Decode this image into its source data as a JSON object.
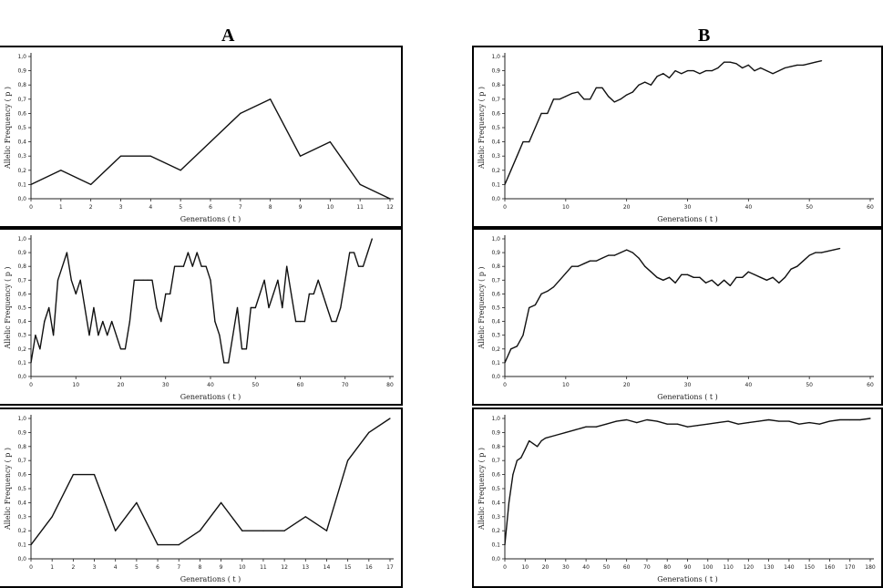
{
  "column_titles": {
    "a": "A",
    "b": "B"
  },
  "chart_data": [
    {
      "id": "a1",
      "type": "line",
      "title": "",
      "xlabel": "Generations ( t )",
      "ylabel": "Allelic Frequency ( p )",
      "xlim": [
        0,
        12
      ],
      "ylim": [
        0,
        1
      ],
      "xticks": [
        0,
        1,
        2,
        3,
        4,
        5,
        6,
        7,
        8,
        9,
        10,
        11,
        12
      ],
      "xtick_labels": [
        "0",
        "1",
        "2",
        "3",
        "4",
        "5",
        "6",
        "7",
        "8",
        "9",
        "10",
        "11",
        "12"
      ],
      "yticks": [
        0,
        0.1,
        0.2,
        0.3,
        0.4,
        0.5,
        0.6,
        0.7,
        0.8,
        0.9,
        1
      ],
      "ytick_labels": [
        "0,0",
        "0,1",
        "0,2",
        "0,3",
        "0,4",
        "0,5",
        "0,6",
        "0,7",
        "0,8",
        "0,9",
        "1,0"
      ],
      "x": [
        0,
        1,
        2,
        3,
        4,
        5,
        6,
        7,
        8,
        9,
        10,
        11,
        12
      ],
      "y": [
        0.1,
        0.2,
        0.1,
        0.3,
        0.3,
        0.2,
        0.4,
        0.6,
        0.7,
        0.3,
        0.4,
        0.1,
        0.0
      ]
    },
    {
      "id": "a2",
      "type": "line",
      "title": "",
      "xlabel": "Generations ( t )",
      "ylabel": "Allelic Frequency ( p )",
      "xlim": [
        0,
        80
      ],
      "ylim": [
        0,
        1
      ],
      "xticks": [
        0,
        10,
        20,
        30,
        40,
        50,
        60,
        70,
        80
      ],
      "xtick_labels": [
        "0",
        "10",
        "20",
        "30",
        "40",
        "50",
        "60",
        "70",
        "80"
      ],
      "yticks": [
        0,
        0.1,
        0.2,
        0.3,
        0.4,
        0.5,
        0.6,
        0.7,
        0.8,
        0.9,
        1
      ],
      "ytick_labels": [
        "0,0",
        "0,1",
        "0,2",
        "0,3",
        "0,4",
        "0,5",
        "0,6",
        "0,7",
        "0,8",
        "0,9",
        "1,0"
      ],
      "x": [
        0,
        1,
        2,
        3,
        4,
        5,
        6,
        7,
        8,
        9,
        10,
        11,
        12,
        13,
        14,
        15,
        16,
        17,
        18,
        19,
        20,
        21,
        22,
        23,
        24,
        25,
        26,
        27,
        28,
        29,
        30,
        31,
        32,
        33,
        34,
        35,
        36,
        37,
        38,
        39,
        40,
        41,
        42,
        43,
        44,
        45,
        46,
        47,
        48,
        49,
        50,
        51,
        52,
        53,
        54,
        55,
        56,
        57,
        58,
        59,
        60,
        61,
        62,
        63,
        64,
        65,
        66,
        67,
        68,
        69,
        70,
        71,
        72,
        73,
        74,
        75,
        76
      ],
      "y": [
        0.1,
        0.3,
        0.2,
        0.4,
        0.5,
        0.3,
        0.7,
        0.8,
        0.9,
        0.7,
        0.6,
        0.7,
        0.5,
        0.3,
        0.5,
        0.3,
        0.4,
        0.3,
        0.4,
        0.3,
        0.2,
        0.2,
        0.4,
        0.7,
        0.7,
        0.7,
        0.7,
        0.7,
        0.5,
        0.4,
        0.6,
        0.6,
        0.8,
        0.8,
        0.8,
        0.9,
        0.8,
        0.9,
        0.8,
        0.8,
        0.7,
        0.4,
        0.3,
        0.1,
        0.1,
        0.3,
        0.5,
        0.2,
        0.2,
        0.5,
        0.5,
        0.6,
        0.7,
        0.5,
        0.6,
        0.7,
        0.5,
        0.8,
        0.6,
        0.4,
        0.4,
        0.4,
        0.6,
        0.6,
        0.7,
        0.6,
        0.5,
        0.4,
        0.4,
        0.5,
        0.7,
        0.9,
        0.9,
        0.8,
        0.8,
        0.9,
        1.0
      ]
    },
    {
      "id": "a3",
      "type": "line",
      "title": "",
      "xlabel": "Generations ( t )",
      "ylabel": "Allelic Frequency ( p )",
      "xlim": [
        0,
        17
      ],
      "ylim": [
        0,
        1
      ],
      "xticks": [
        0,
        1,
        2,
        3,
        4,
        5,
        6,
        7,
        8,
        9,
        10,
        11,
        12,
        13,
        14,
        15,
        16,
        17
      ],
      "xtick_labels": [
        "0",
        "1",
        "2",
        "3",
        "4",
        "5",
        "6",
        "7",
        "8",
        "9",
        "10",
        "11",
        "12",
        "13",
        "14",
        "15",
        "16",
        "17"
      ],
      "yticks": [
        0,
        0.1,
        0.2,
        0.3,
        0.4,
        0.5,
        0.6,
        0.7,
        0.8,
        0.9,
        1
      ],
      "ytick_labels": [
        "0,0",
        "0,1",
        "0,2",
        "0,3",
        "0,4",
        "0,5",
        "0,6",
        "0,7",
        "0,8",
        "0,9",
        "1,0"
      ],
      "x": [
        0,
        1,
        2,
        3,
        4,
        5,
        6,
        7,
        8,
        9,
        10,
        11,
        12,
        13,
        14,
        15,
        16,
        17
      ],
      "y": [
        0.1,
        0.3,
        0.6,
        0.6,
        0.2,
        0.4,
        0.1,
        0.1,
        0.2,
        0.4,
        0.2,
        0.2,
        0.2,
        0.3,
        0.2,
        0.7,
        0.9,
        1.0
      ]
    },
    {
      "id": "b1",
      "type": "line",
      "title": "",
      "xlabel": "Generations ( t )",
      "ylabel": "Allelic Frequency ( p )",
      "xlim": [
        0,
        60
      ],
      "ylim": [
        0,
        1
      ],
      "xticks": [
        0,
        10,
        20,
        30,
        40,
        50,
        60
      ],
      "xtick_labels": [
        "0",
        "10",
        "20",
        "30",
        "40",
        "50",
        "60"
      ],
      "yticks": [
        0,
        0.1,
        0.2,
        0.3,
        0.4,
        0.5,
        0.6,
        0.7,
        0.8,
        0.9,
        1
      ],
      "ytick_labels": [
        "0,0",
        "0,1",
        "0,2",
        "0,3",
        "0,4",
        "0,5",
        "0,6",
        "0,7",
        "0,8",
        "0,9",
        "1,0"
      ],
      "x": [
        0,
        1,
        2,
        3,
        4,
        5,
        6,
        7,
        8,
        9,
        10,
        11,
        12,
        13,
        14,
        15,
        16,
        17,
        18,
        19,
        20,
        21,
        22,
        23,
        24,
        25,
        26,
        27,
        28,
        29,
        30,
        31,
        32,
        33,
        34,
        35,
        36,
        37,
        38,
        39,
        40,
        41,
        42,
        43,
        44,
        45,
        46,
        47,
        48,
        49,
        50,
        51,
        52
      ],
      "y": [
        0.1,
        0.2,
        0.3,
        0.4,
        0.4,
        0.5,
        0.6,
        0.6,
        0.7,
        0.7,
        0.72,
        0.74,
        0.75,
        0.7,
        0.7,
        0.78,
        0.78,
        0.72,
        0.68,
        0.7,
        0.73,
        0.75,
        0.8,
        0.82,
        0.8,
        0.86,
        0.88,
        0.85,
        0.9,
        0.88,
        0.9,
        0.9,
        0.88,
        0.9,
        0.9,
        0.92,
        0.96,
        0.96,
        0.95,
        0.92,
        0.94,
        0.9,
        0.92,
        0.9,
        0.88,
        0.9,
        0.92,
        0.93,
        0.94,
        0.94,
        0.95,
        0.96,
        0.97
      ]
    },
    {
      "id": "b2",
      "type": "line",
      "title": "",
      "xlabel": "Generations ( t )",
      "ylabel": "Allelic Frequency ( p )",
      "xlim": [
        0,
        60
      ],
      "ylim": [
        0,
        1
      ],
      "xticks": [
        0,
        10,
        20,
        30,
        40,
        50,
        60
      ],
      "xtick_labels": [
        "0",
        "10",
        "20",
        "30",
        "40",
        "50",
        "60"
      ],
      "yticks": [
        0,
        0.1,
        0.2,
        0.3,
        0.4,
        0.5,
        0.6,
        0.7,
        0.8,
        0.9,
        1
      ],
      "ytick_labels": [
        "0,0",
        "0,1",
        "0,2",
        "0,3",
        "0,4",
        "0,5",
        "0,6",
        "0,7",
        "0,8",
        "0,9",
        "1,0"
      ],
      "x": [
        0,
        1,
        2,
        3,
        4,
        5,
        6,
        7,
        8,
        9,
        10,
        11,
        12,
        13,
        14,
        15,
        16,
        17,
        18,
        19,
        20,
        21,
        22,
        23,
        24,
        25,
        26,
        27,
        28,
        29,
        30,
        31,
        32,
        33,
        34,
        35,
        36,
        37,
        38,
        39,
        40,
        41,
        42,
        43,
        44,
        45,
        46,
        47,
        48,
        49,
        50,
        51,
        52,
        53,
        54,
        55
      ],
      "y": [
        0.1,
        0.2,
        0.22,
        0.3,
        0.5,
        0.52,
        0.6,
        0.62,
        0.65,
        0.7,
        0.75,
        0.8,
        0.8,
        0.82,
        0.84,
        0.84,
        0.86,
        0.88,
        0.88,
        0.9,
        0.92,
        0.9,
        0.86,
        0.8,
        0.76,
        0.72,
        0.7,
        0.72,
        0.68,
        0.74,
        0.74,
        0.72,
        0.72,
        0.68,
        0.7,
        0.66,
        0.7,
        0.66,
        0.72,
        0.72,
        0.76,
        0.74,
        0.72,
        0.7,
        0.72,
        0.68,
        0.72,
        0.78,
        0.8,
        0.84,
        0.88,
        0.9,
        0.9,
        0.91,
        0.92,
        0.93
      ]
    },
    {
      "id": "b3",
      "type": "line",
      "title": "",
      "xlabel": "Generations ( t )",
      "ylabel": "Allelic Frequency ( p )",
      "xlim": [
        0,
        180
      ],
      "ylim": [
        0,
        1
      ],
      "xticks": [
        0,
        10,
        20,
        30,
        40,
        50,
        60,
        70,
        80,
        90,
        100,
        110,
        120,
        130,
        140,
        150,
        160,
        170,
        180
      ],
      "xtick_labels": [
        "0",
        "10",
        "20",
        "30",
        "40",
        "50",
        "60",
        "70",
        "80",
        "90",
        "100",
        "110",
        "120",
        "130",
        "140",
        "150",
        "160",
        "170",
        "180"
      ],
      "yticks": [
        0,
        0.1,
        0.2,
        0.3,
        0.4,
        0.5,
        0.6,
        0.7,
        0.8,
        0.9,
        1
      ],
      "ytick_labels": [
        "0,0",
        "0,1",
        "0,2",
        "0,3",
        "0,4",
        "0,5",
        "0,6",
        "0,7",
        "0,8",
        "0,9",
        "1,0"
      ],
      "x": [
        0,
        2,
        4,
        6,
        8,
        10,
        12,
        14,
        16,
        18,
        20,
        25,
        30,
        35,
        40,
        45,
        50,
        55,
        60,
        65,
        70,
        75,
        80,
        85,
        90,
        95,
        100,
        105,
        110,
        115,
        120,
        125,
        130,
        135,
        140,
        145,
        150,
        155,
        160,
        165,
        170,
        175,
        180
      ],
      "y": [
        0.1,
        0.4,
        0.6,
        0.7,
        0.72,
        0.78,
        0.84,
        0.82,
        0.8,
        0.84,
        0.86,
        0.88,
        0.9,
        0.92,
        0.94,
        0.94,
        0.96,
        0.98,
        0.99,
        0.97,
        0.99,
        0.98,
        0.96,
        0.96,
        0.94,
        0.95,
        0.96,
        0.97,
        0.98,
        0.96,
        0.97,
        0.98,
        0.99,
        0.98,
        0.98,
        0.96,
        0.97,
        0.96,
        0.98,
        0.99,
        0.99,
        0.99,
        1.0
      ]
    }
  ]
}
